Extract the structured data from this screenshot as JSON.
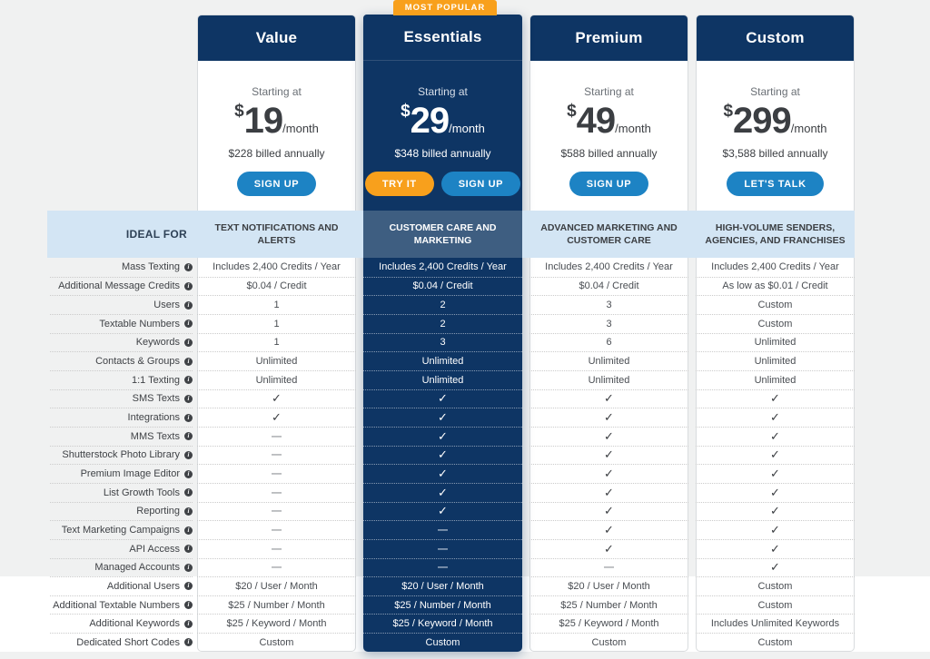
{
  "badge": {
    "label": "MOST POPULAR"
  },
  "band": {
    "ideal_for_label": "IDEAL FOR"
  },
  "shared": {
    "starting_at_label": "Starting at"
  },
  "colors": {
    "navy": "#0e3564",
    "band_light_blue": "#d3e5f4",
    "band_dark_slate": "#3e5e81",
    "button_blue": "#1d83c4",
    "button_orange": "#f8a01c",
    "page_background": "#f0f1f1"
  },
  "plans": [
    {
      "name": "Value",
      "highlight": false,
      "currency": "$",
      "amount": "19",
      "period": "/month",
      "billed": "$228 billed annually",
      "buttons": [
        {
          "label": "SIGN UP",
          "color": "blue"
        }
      ],
      "ideal_for": "TEXT NOTIFICATIONS AND ALERTS"
    },
    {
      "name": "Essentials",
      "highlight": true,
      "currency": "$",
      "amount": "29",
      "period": "/month",
      "billed": "$348 billed annually",
      "buttons": [
        {
          "label": "TRY IT",
          "color": "orange"
        },
        {
          "label": "SIGN UP",
          "color": "blue"
        }
      ],
      "ideal_for": "CUSTOMER CARE AND MARKETING"
    },
    {
      "name": "Premium",
      "highlight": false,
      "currency": "$",
      "amount": "49",
      "period": "/month",
      "billed": "$588 billed annually",
      "buttons": [
        {
          "label": "SIGN UP",
          "color": "blue"
        }
      ],
      "ideal_for": "ADVANCED MARKETING AND CUSTOMER CARE"
    },
    {
      "name": "Custom",
      "highlight": false,
      "currency": "$",
      "amount": "299",
      "period": "/month",
      "billed": "$3,588 billed annually",
      "buttons": [
        {
          "label": "LET'S TALK",
          "color": "blue"
        }
      ],
      "ideal_for": "HIGH-VOLUME SENDERS, AGENCIES, AND FRANCHISES"
    }
  ],
  "features": [
    {
      "label": "Mass Texting",
      "values": [
        "Includes 2,400 Credits / Year",
        "Includes 2,400 Credits / Year",
        "Includes 2,400 Credits / Year",
        "Includes 2,400 Credits / Year"
      ]
    },
    {
      "label": "Additional Message Credits",
      "values": [
        "$0.04 / Credit",
        "$0.04 / Credit",
        "$0.04 / Credit",
        "As low as $0.01 / Credit"
      ]
    },
    {
      "label": "Users",
      "values": [
        "1",
        "2",
        "3",
        "Custom"
      ]
    },
    {
      "label": "Textable Numbers",
      "values": [
        "1",
        "2",
        "3",
        "Custom"
      ]
    },
    {
      "label": "Keywords",
      "values": [
        "1",
        "3",
        "6",
        "Unlimited"
      ]
    },
    {
      "label": "Contacts & Groups",
      "values": [
        "Unlimited",
        "Unlimited",
        "Unlimited",
        "Unlimited"
      ]
    },
    {
      "label": "1:1 Texting",
      "values": [
        "Unlimited",
        "Unlimited",
        "Unlimited",
        "Unlimited"
      ]
    },
    {
      "label": "SMS Texts",
      "values": [
        "check",
        "check",
        "check",
        "check"
      ]
    },
    {
      "label": "Integrations",
      "values": [
        "check",
        "check",
        "check",
        "check"
      ]
    },
    {
      "label": "MMS Texts",
      "values": [
        "dash",
        "check",
        "check",
        "check"
      ]
    },
    {
      "label": "Shutterstock Photo Library",
      "values": [
        "dash",
        "check",
        "check",
        "check"
      ]
    },
    {
      "label": "Premium Image Editor",
      "values": [
        "dash",
        "check",
        "check",
        "check"
      ]
    },
    {
      "label": "List Growth Tools",
      "values": [
        "dash",
        "check",
        "check",
        "check"
      ]
    },
    {
      "label": "Reporting",
      "values": [
        "dash",
        "check",
        "check",
        "check"
      ]
    },
    {
      "label": "Text Marketing Campaigns",
      "values": [
        "dash",
        "dash",
        "check",
        "check"
      ]
    },
    {
      "label": "API Access",
      "values": [
        "dash",
        "dash",
        "check",
        "check"
      ]
    },
    {
      "label": "Managed Accounts",
      "values": [
        "dash",
        "dash",
        "dash",
        "check"
      ]
    },
    {
      "label": "Additional Users",
      "values": [
        "$20 / User / Month",
        "$20 / User / Month",
        "$20 / User / Month",
        "Custom"
      ]
    },
    {
      "label": "Additional Textable Numbers",
      "values": [
        "$25 / Number / Month",
        "$25 / Number / Month",
        "$25 / Number / Month",
        "Custom"
      ]
    },
    {
      "label": "Additional Keywords",
      "values": [
        "$25 / Keyword / Month",
        "$25 / Keyword / Month",
        "$25 / Keyword / Month",
        "Includes Unlimited Keywords"
      ]
    },
    {
      "label": "Dedicated Short Codes",
      "values": [
        "Custom",
        "Custom",
        "Custom",
        "Custom"
      ]
    }
  ]
}
